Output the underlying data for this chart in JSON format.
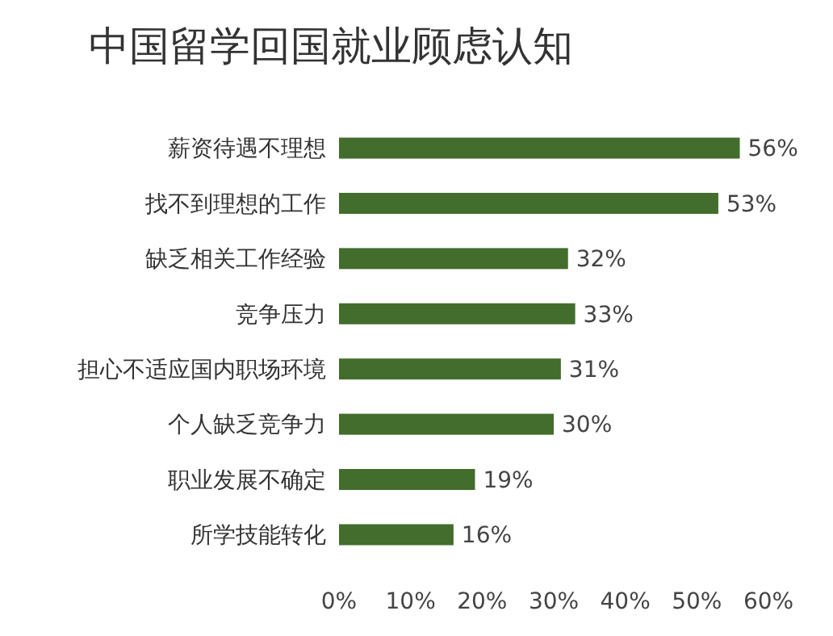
{
  "chart_data": {
    "type": "bar",
    "orientation": "horizontal",
    "title": "中国留学回国就业顾虑认知",
    "categories": [
      "薪资待遇不理想",
      "找不到理想的工作",
      "缺乏相关工作经验",
      "竞争压力",
      "担心不适应国内职场环境",
      "个人缺乏竞争力",
      "职业发展不确定",
      "所学技能转化"
    ],
    "values": [
      56,
      53,
      32,
      33,
      31,
      30,
      19,
      16
    ],
    "value_labels": [
      "56%",
      "53%",
      "32%",
      "33%",
      "31%",
      "30%",
      "19%",
      "16%"
    ],
    "color": "#426d2c",
    "xlim": [
      0,
      60
    ],
    "xticks": [
      {
        "value": 0,
        "label": "0%"
      },
      {
        "value": 10,
        "label": "10%"
      },
      {
        "value": 20,
        "label": "20%"
      },
      {
        "value": 30,
        "label": "30%"
      },
      {
        "value": 40,
        "label": "40%"
      },
      {
        "value": 50,
        "label": "50%"
      },
      {
        "value": 60,
        "label": "60%"
      }
    ],
    "grid": false
  }
}
